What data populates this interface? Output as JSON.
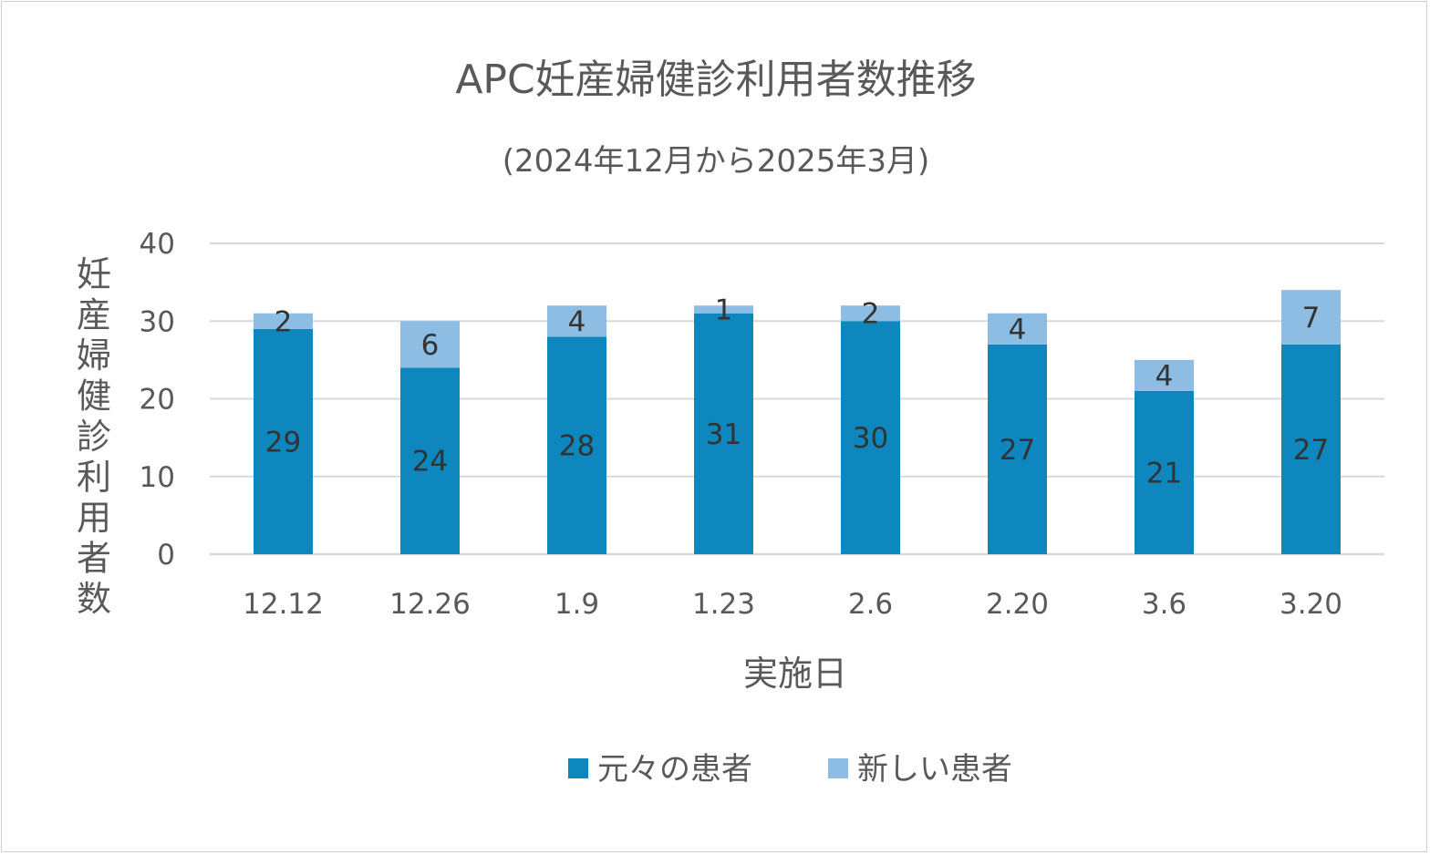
{
  "chart_data": {
    "type": "bar",
    "stacked": true,
    "title": "APC妊産婦健診利用者数推移",
    "subtitle": "(2024年12月から2025年3月)",
    "xlabel": "実施日",
    "ylabel": "妊産婦健診利用者数",
    "categories": [
      "12.12",
      "12.26",
      "1.9",
      "1.23",
      "2.6",
      "2.20",
      "3.6",
      "3.20"
    ],
    "series": [
      {
        "name": "元々の患者",
        "values": [
          29,
          24,
          28,
          31,
          30,
          27,
          21,
          27
        ],
        "color": "#0d87bd"
      },
      {
        "name": "新しい患者",
        "values": [
          2,
          6,
          4,
          1,
          2,
          4,
          4,
          7
        ],
        "color": "#8dbde3"
      }
    ],
    "ylim": [
      0,
      40
    ],
    "yticks": [
      0,
      10,
      20,
      30,
      40
    ],
    "grid": true,
    "legend": "bottom",
    "gridColor": "#d9d9d9"
  }
}
